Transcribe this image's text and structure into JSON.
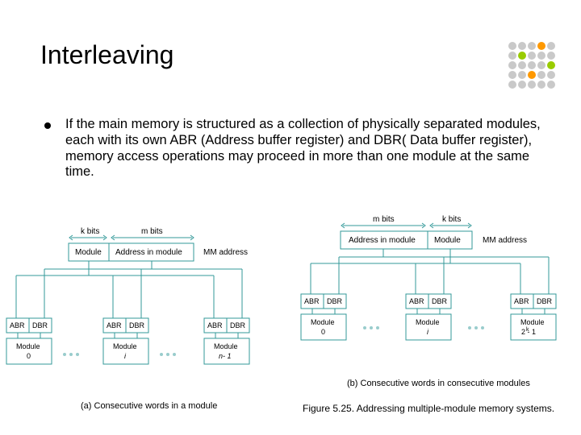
{
  "title": "Interleaving",
  "body": "If the main memory is structured as a collection of physically separated modules, each with its own ABR (Address buffer register) and DBR( Data buffer register), memory access operations may proceed in more than one module at the same time.",
  "dot_colors": [
    "#c9c9c9",
    "#c9c9c9",
    "#c9c9c9",
    "#ff9900",
    "#c9c9c9",
    "#c9c9c9",
    "#99cc00",
    "#c9c9c9",
    "#c9c9c9",
    "#c9c9c9",
    "#c9c9c9",
    "#c9c9c9",
    "#c9c9c9",
    "#c9c9c9",
    "#99cc00",
    "#c9c9c9",
    "#c9c9c9",
    "#ff9900",
    "#c9c9c9",
    "#c9c9c9",
    "#c9c9c9",
    "#c9c9c9",
    "#c9c9c9",
    "#c9c9c9",
    "#c9c9c9"
  ],
  "diagram_a": {
    "kbits": "k bits",
    "mbits": "m bits",
    "module_field": "Module",
    "address_field": "Address in module",
    "mm_address": "MM address",
    "abr": "ABR",
    "dbr": "DBR",
    "mod0": "Module\n0",
    "modi": "Module",
    "modi_sub": "i",
    "modn": "Module",
    "modn_sub": "n- 1",
    "caption": "(a) Consecutive words in a module"
  },
  "diagram_b": {
    "mbits": "m bits",
    "kbits": "k bits",
    "address_field": "Address in module",
    "module_field": "Module",
    "mm_address": "MM address",
    "abr": "ABR",
    "dbr": "DBR",
    "mod0": "Module\n0",
    "modi": "Module",
    "modi_sub": "i",
    "mod2k": "Module\n2  - 1",
    "mod2k_sup": "k",
    "caption": "(b) Consecutive words in consecutive modules"
  },
  "figure_caption": "Figure 5.25. Addressing multiple-module memory systems.",
  "colors": {
    "teal": "#339999",
    "lightteal": "#99cccc",
    "black": "#000000"
  }
}
